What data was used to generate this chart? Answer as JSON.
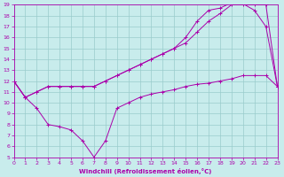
{
  "xlabel": "Windchill (Refroidissement éolien,°C)",
  "xlim": [
    0,
    23
  ],
  "ylim": [
    5,
    19
  ],
  "xticks": [
    0,
    1,
    2,
    3,
    4,
    5,
    6,
    7,
    8,
    9,
    10,
    11,
    12,
    13,
    14,
    15,
    16,
    17,
    18,
    19,
    20,
    21,
    22,
    23
  ],
  "yticks": [
    5,
    6,
    7,
    8,
    9,
    10,
    11,
    12,
    13,
    14,
    15,
    16,
    17,
    18,
    19
  ],
  "bg_color": "#c8ecec",
  "grid_color": "#99cccc",
  "line_color": "#aa00aa",
  "line1_x": [
    0,
    1,
    2,
    3,
    4,
    5,
    6,
    7,
    8,
    9,
    10,
    11,
    12,
    13,
    14,
    15,
    16,
    17,
    18,
    19,
    20,
    21,
    22,
    23
  ],
  "line1_y": [
    12.0,
    10.5,
    11.0,
    11.5,
    11.5,
    11.5,
    11.5,
    11.5,
    12.0,
    12.5,
    13.0,
    13.5,
    14.0,
    14.5,
    15.0,
    16.0,
    17.5,
    18.5,
    18.7,
    19.2,
    19.1,
    18.5,
    17.0,
    11.5
  ],
  "line2_x": [
    0,
    1,
    2,
    3,
    4,
    5,
    6,
    7,
    8,
    9,
    10,
    11,
    12,
    13,
    14,
    15,
    16,
    17,
    18,
    19,
    20,
    21,
    22,
    23
  ],
  "line2_y": [
    12.0,
    10.5,
    11.0,
    11.5,
    11.5,
    11.5,
    11.5,
    11.5,
    12.0,
    12.5,
    13.0,
    13.5,
    14.0,
    14.5,
    15.0,
    15.5,
    16.5,
    17.5,
    18.2,
    19.0,
    19.0,
    19.0,
    19.0,
    11.5
  ],
  "line3_x": [
    0,
    1,
    2,
    3,
    4,
    5,
    6,
    7,
    8,
    9,
    10,
    11,
    12,
    13,
    14,
    15,
    16,
    17,
    18,
    19,
    20,
    21,
    22,
    23
  ],
  "line3_y": [
    12.0,
    10.5,
    9.5,
    8.0,
    7.8,
    7.5,
    6.5,
    5.0,
    6.5,
    9.5,
    10.0,
    10.5,
    10.8,
    11.0,
    11.2,
    11.5,
    11.7,
    11.8,
    12.0,
    12.2,
    12.5,
    12.5,
    12.5,
    11.5
  ]
}
